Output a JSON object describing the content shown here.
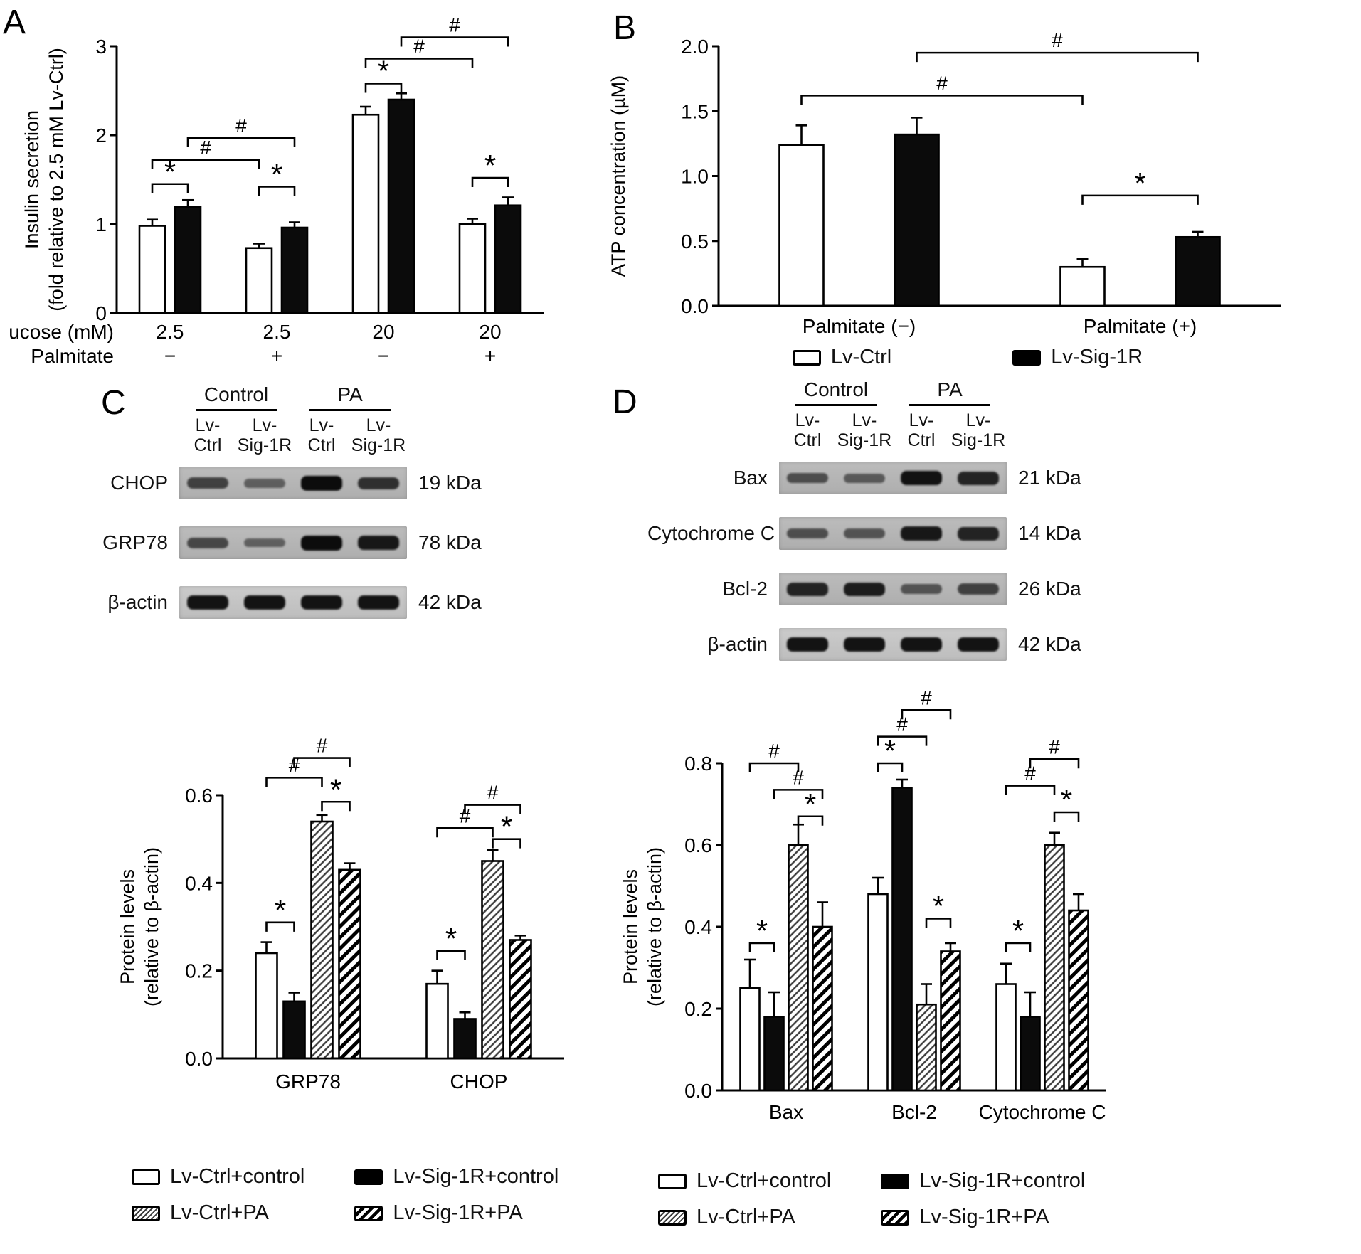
{
  "panels": {
    "A": {
      "label": "A"
    },
    "B": {
      "label": "B"
    },
    "C": {
      "label": "C"
    },
    "D": {
      "label": "D"
    }
  },
  "chart_data": [
    {
      "id": "A",
      "type": "bar",
      "title": "",
      "ylabel_lines": [
        "Insulin secretion",
        "(fold relative to 2.5 mM Lv-Ctrl)"
      ],
      "ylim": [
        0,
        3
      ],
      "yticks": [
        "0",
        "1",
        "2",
        "3"
      ],
      "x_axis_rows": [
        {
          "label": "Glucose (mM)",
          "values": [
            "2.5",
            "2.5",
            "20",
            "20"
          ]
        },
        {
          "label": "Palmitate",
          "values": [
            "−",
            "+",
            "−",
            "+"
          ]
        }
      ],
      "series": [
        {
          "name": "Lv-Ctrl",
          "style": "white",
          "values": [
            0.98,
            0.73,
            2.23,
            1.0
          ],
          "errors": [
            0.07,
            0.05,
            0.09,
            0.06
          ]
        },
        {
          "name": "Lv-Sig-1R",
          "style": "black",
          "values": [
            1.19,
            0.96,
            2.4,
            1.21
          ],
          "errors": [
            0.08,
            0.06,
            0.07,
            0.09
          ]
        }
      ],
      "significance": [
        {
          "label": "*",
          "from": 0,
          "to": 1,
          "y": 1.45
        },
        {
          "label": "*",
          "from": 2,
          "to": 3,
          "y": 1.42
        },
        {
          "label": "#",
          "from": 0,
          "to": 2,
          "y": 1.72
        },
        {
          "label": "#",
          "from": 1,
          "to": 3,
          "y": 1.97
        },
        {
          "label": "*",
          "from": 4,
          "to": 5,
          "y": 2.58
        },
        {
          "label": "#",
          "from": 4,
          "to": 6,
          "y": 2.86
        },
        {
          "label": "#",
          "from": 5,
          "to": 7,
          "y": 3.1
        },
        {
          "label": "*",
          "from": 6,
          "to": 7,
          "y": 1.52
        }
      ]
    },
    {
      "id": "B",
      "type": "bar",
      "title": "",
      "ylabel_lines": [
        "ATP concentration (µM)"
      ],
      "ylim": [
        0,
        2
      ],
      "yticks": [
        "0.0",
        "0.5",
        "1.0",
        "1.5",
        "2.0"
      ],
      "categories": [
        "Palmitate (−)",
        "Palmitate (+)"
      ],
      "series": [
        {
          "name": "Lv-Ctrl",
          "style": "white",
          "values": [
            1.24,
            0.3
          ],
          "errors": [
            0.15,
            0.06
          ]
        },
        {
          "name": "Lv-Sig-1R",
          "style": "black",
          "values": [
            1.32,
            0.53
          ],
          "errors": [
            0.13,
            0.04
          ]
        }
      ],
      "significance": [
        {
          "label": "#",
          "from": 0,
          "to": 2,
          "y": 1.62
        },
        {
          "label": "#",
          "from": 1,
          "to": 3,
          "y": 1.95
        },
        {
          "label": "*",
          "from": 2,
          "to": 3,
          "y": 0.85
        }
      ]
    },
    {
      "id": "C",
      "type": "bar",
      "title": "",
      "ylabel_lines": [
        "Protein levels",
        "(relative to β-actin)"
      ],
      "ylim": [
        0,
        0.6
      ],
      "yticks": [
        "0.0",
        "0.2",
        "0.4",
        "0.6"
      ],
      "categories": [
        "GRP78",
        "CHOP"
      ],
      "series": [
        {
          "name": "Lv-Ctrl+control",
          "style": "white",
          "values": [
            0.24,
            0.17
          ],
          "errors": [
            0.025,
            0.03
          ]
        },
        {
          "name": "Lv-Sig-1R+control",
          "style": "black",
          "values": [
            0.13,
            0.09
          ],
          "errors": [
            0.02,
            0.015
          ]
        },
        {
          "name": "Lv-Ctrl+PA",
          "style": "hatch-light",
          "values": [
            0.54,
            0.45
          ],
          "errors": [
            0.015,
            0.025
          ]
        },
        {
          "name": "Lv-Sig-1R+PA",
          "style": "hatch-dark",
          "values": [
            0.43,
            0.27
          ],
          "errors": [
            0.015,
            0.01
          ]
        }
      ],
      "significance": [
        {
          "label": "*",
          "from": 0,
          "to": 1,
          "y": 0.31
        },
        {
          "label": "*",
          "from": 2,
          "to": 3,
          "y": 0.585
        },
        {
          "label": "#",
          "from": 0,
          "to": 2,
          "y": 0.64
        },
        {
          "label": "#",
          "from": 1,
          "to": 3,
          "y": 0.685
        },
        {
          "label": "*",
          "from": 4,
          "to": 5,
          "y": 0.245
        },
        {
          "label": "#",
          "from": 4,
          "to": 6,
          "y": 0.525
        },
        {
          "label": "*",
          "from": 6,
          "to": 7,
          "y": 0.5
        },
        {
          "label": "#",
          "from": 5,
          "to": 7,
          "y": 0.578
        }
      ]
    },
    {
      "id": "D",
      "type": "bar",
      "title": "",
      "ylabel_lines": [
        "Protein levels",
        "(relative to β-actin)"
      ],
      "ylim": [
        0,
        0.8
      ],
      "yticks": [
        "0.0",
        "0.2",
        "0.4",
        "0.6",
        "0.8"
      ],
      "categories": [
        "Bax",
        "Bcl-2",
        "Cytochrome C"
      ],
      "series": [
        {
          "name": "Lv-Ctrl+control",
          "style": "white",
          "values": [
            0.25,
            0.48,
            0.26
          ],
          "errors": [
            0.07,
            0.04,
            0.05
          ]
        },
        {
          "name": "Lv-Sig-1R+control",
          "style": "black",
          "values": [
            0.18,
            0.74,
            0.18
          ],
          "errors": [
            0.06,
            0.02,
            0.06
          ]
        },
        {
          "name": "Lv-Ctrl+PA",
          "style": "hatch-light",
          "values": [
            0.6,
            0.21,
            0.6
          ],
          "errors": [
            0.05,
            0.05,
            0.03
          ]
        },
        {
          "name": "Lv-Sig-1R+PA",
          "style": "hatch-dark",
          "values": [
            0.4,
            0.34,
            0.44
          ],
          "errors": [
            0.06,
            0.02,
            0.04
          ]
        }
      ],
      "significance": [
        {
          "label": "*",
          "from": 0,
          "to": 1,
          "y": 0.36
        },
        {
          "label": "*",
          "from": 2,
          "to": 3,
          "y": 0.67
        },
        {
          "label": "#",
          "from": 1,
          "to": 3,
          "y": 0.735
        },
        {
          "label": "#",
          "from": 0,
          "to": 2,
          "y": 0.8
        },
        {
          "label": "*",
          "from": 4,
          "to": 5,
          "y": 0.8
        },
        {
          "label": "#",
          "from": 4,
          "to": 6,
          "y": 0.865
        },
        {
          "label": "#",
          "from": 5,
          "to": 7,
          "y": 0.93
        },
        {
          "label": "*",
          "from": 6,
          "to": 7,
          "y": 0.42
        },
        {
          "label": "*",
          "from": 8,
          "to": 9,
          "y": 0.36
        },
        {
          "label": "*",
          "from": 10,
          "to": 11,
          "y": 0.68
        },
        {
          "label": "#",
          "from": 8,
          "to": 10,
          "y": 0.745
        },
        {
          "label": "#",
          "from": 9,
          "to": 11,
          "y": 0.81
        }
      ]
    }
  ],
  "blots": {
    "C": {
      "group_headers": [
        "Control",
        "PA"
      ],
      "lane_labels": [
        [
          "Lv-",
          "Ctrl"
        ],
        [
          "Lv-",
          "Sig-1R"
        ],
        [
          "Lv-",
          "Ctrl"
        ],
        [
          "Lv-",
          "Sig-1R"
        ]
      ],
      "rows": [
        {
          "protein": "CHOP",
          "weight": "19 kDa",
          "band_intensities": [
            0.55,
            0.3,
            1.0,
            0.7
          ]
        },
        {
          "protein": "GRP78",
          "weight": "78 kDa",
          "band_intensities": [
            0.5,
            0.28,
            1.0,
            0.9
          ]
        },
        {
          "protein": "β-actin",
          "weight": "42 kDa",
          "band_intensities": [
            0.95,
            0.95,
            0.95,
            0.95
          ]
        }
      ]
    },
    "D": {
      "group_headers": [
        "Control",
        "PA"
      ],
      "lane_labels": [
        [
          "Lv-",
          "Ctrl"
        ],
        [
          "Lv-",
          "Sig-1R"
        ],
        [
          "Lv-",
          "Ctrl"
        ],
        [
          "Lv-",
          "Sig-1R"
        ]
      ],
      "rows": [
        {
          "protein": "Bax",
          "weight": "21 kDa",
          "band_intensities": [
            0.45,
            0.35,
            0.95,
            0.8
          ]
        },
        {
          "protein": "Cytochrome C",
          "weight": "14 kDa",
          "band_intensities": [
            0.45,
            0.4,
            0.9,
            0.8
          ]
        },
        {
          "protein": "Bcl-2",
          "weight": "26 kDa",
          "band_intensities": [
            0.8,
            0.85,
            0.4,
            0.55
          ]
        },
        {
          "protein": "β-actin",
          "weight": "42 kDa",
          "band_intensities": [
            0.95,
            0.95,
            0.95,
            0.95
          ]
        }
      ]
    }
  }
}
